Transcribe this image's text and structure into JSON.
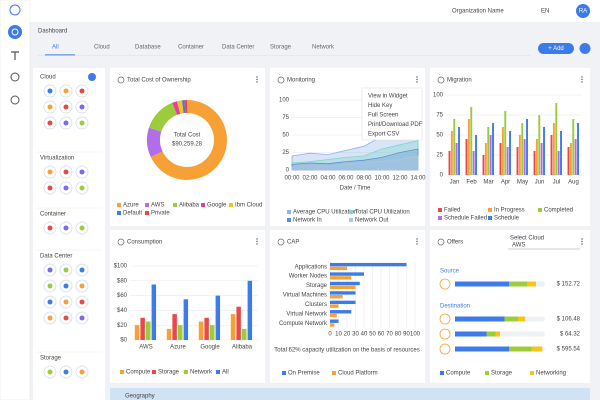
{
  "header": {
    "org": "Organization Name",
    "lang": "EN",
    "avatar": "RA"
  },
  "page_title": "Dashboard",
  "tabs": [
    "All",
    "Cloud",
    "Database",
    "Container",
    "Data Center",
    "Storage",
    "Network"
  ],
  "add_button": "+ Add",
  "sidebar_sections": [
    "Cloud",
    "Virtualization",
    "Container",
    "Data Center",
    "Storage"
  ],
  "geography": "Geography",
  "chart_data": [
    {
      "type": "donut",
      "title": "Total Cost of Ownership",
      "center_label": "Total Cost",
      "center_value": "$90,259.28",
      "categories": [
        "Azure",
        "AWS",
        "Alibaba",
        "Google",
        "Ibm Cloud",
        "Default",
        "Private"
      ],
      "values": [
        68,
        12,
        14,
        2,
        2,
        1,
        1
      ],
      "colors": [
        "#f7a035",
        "#b16ee8",
        "#9ccc3c",
        "#e040a0",
        "#f5c518",
        "#3d7be8",
        "#e84848"
      ]
    },
    {
      "type": "area",
      "title": "Monitoring",
      "x_label": "Date / Time",
      "menu": [
        "View in Widget",
        "Hide Key",
        "Full Screen",
        "Print/Download PDF",
        "Export CSV"
      ],
      "categories": [
        "00:00",
        "02:00",
        "04:00",
        "06:00",
        "08:00",
        "10:00",
        "12:00",
        "14:00"
      ],
      "ylim": [
        0,
        100
      ],
      "yticks": [
        0,
        25,
        50,
        75,
        100
      ],
      "series": [
        {
          "name": "Average CPU Utilization",
          "color": "#8fb3e8",
          "values": [
            20,
            24,
            22,
            28,
            34,
            48,
            72,
            58
          ]
        },
        {
          "name": "Total CPU Utilization",
          "color": "#7fd6c9",
          "values": [
            10,
            12,
            15,
            18,
            20,
            30,
            36,
            42
          ]
        },
        {
          "name": "Network In",
          "color": "#5a8fd8",
          "values": [
            8,
            10,
            9,
            12,
            14,
            18,
            25,
            30
          ]
        },
        {
          "name": "Network Out",
          "color": "#b0c4de",
          "values": [
            4,
            6,
            5,
            8,
            10,
            12,
            15,
            20
          ]
        }
      ]
    },
    {
      "type": "bar",
      "title": "Migration",
      "categories": [
        "Jan",
        "Feb",
        "Mar",
        "Apr",
        "May",
        "Jun",
        "Jul",
        "Aug"
      ],
      "ylim": [
        0,
        100
      ],
      "yticks": [
        0,
        25,
        50,
        75,
        100
      ],
      "series": [
        {
          "name": "Failed",
          "color": "#e84848",
          "values": [
            30,
            45,
            25,
            40,
            35,
            30,
            50,
            35
          ]
        },
        {
          "name": "In Progress",
          "color": "#f7a035",
          "values": [
            55,
            70,
            40,
            60,
            50,
            45,
            65,
            40
          ]
        },
        {
          "name": "Completed",
          "color": "#9ccc3c",
          "values": [
            70,
            85,
            60,
            80,
            65,
            75,
            90,
            70
          ]
        },
        {
          "name": "Schedule Failed",
          "color": "#b16ee8",
          "values": [
            40,
            30,
            50,
            35,
            45,
            40,
            30,
            45
          ]
        },
        {
          "name": "Schedule",
          "color": "#3d7be8",
          "values": [
            60,
            50,
            65,
            55,
            70,
            60,
            55,
            65
          ]
        }
      ]
    },
    {
      "type": "bar",
      "title": "Consumption",
      "categories": [
        "AWS",
        "Azure",
        "Google",
        "Alibaba"
      ],
      "ylim": [
        0,
        100
      ],
      "yticks": [
        {
          "value": 0,
          "label": "$0"
        },
        {
          "value": 20,
          "label": "$20"
        },
        {
          "value": 40,
          "label": "$40"
        },
        {
          "value": 60,
          "label": "$60"
        },
        {
          "value": 80,
          "label": "$80"
        },
        {
          "value": 100,
          "label": "$100"
        }
      ],
      "series": [
        {
          "name": "Compute",
          "color": "#f7a035",
          "values": [
            20,
            15,
            25,
            35
          ]
        },
        {
          "name": "Storage",
          "color": "#e84848",
          "values": [
            30,
            35,
            30,
            45
          ]
        },
        {
          "name": "Network",
          "color": "#9ccc3c",
          "values": [
            25,
            20,
            20,
            15
          ]
        },
        {
          "name": "All",
          "color": "#3d7be8",
          "values": [
            75,
            55,
            60,
            80
          ]
        }
      ]
    },
    {
      "type": "hbar",
      "title": "CAP",
      "note": "Total 62% capacity utilization on the basis of resources",
      "categories": [
        "Applications",
        "Worker Nodes",
        "Storage",
        "Virtual Machines",
        "Clusters",
        "Virtual Network",
        "Compute Network"
      ],
      "xlim": [
        0,
        100
      ],
      "xticks": [
        0,
        10,
        20,
        30,
        40,
        50,
        60,
        70,
        80,
        90,
        100
      ],
      "series": [
        {
          "name": "On Premise",
          "color": "#3d7be8",
          "values": [
            90,
            40,
            35,
            30,
            30,
            25,
            10
          ]
        },
        {
          "name": "Cloud Platform",
          "color": "#f7a035",
          "values": [
            20,
            25,
            30,
            15,
            10,
            8,
            5
          ]
        }
      ]
    },
    {
      "type": "stacked_hbar",
      "title": "Offers",
      "select_label": "Select Cloud",
      "select_value": "AWS",
      "groups": [
        "Source",
        "Destination"
      ],
      "xlim": [
        0,
        100
      ],
      "prices": [
        "$ 152.72",
        "$ 106.48",
        "$ 64.32",
        "$ 595.54"
      ],
      "series": [
        {
          "name": "Compute",
          "color": "#3d7be8",
          "values": [
            60,
            55,
            35,
            60
          ]
        },
        {
          "name": "Storage",
          "color": "#9ccc3c",
          "values": [
            20,
            15,
            10,
            25
          ]
        },
        {
          "name": "Networking",
          "color": "#f5c518",
          "values": [
            10,
            8,
            5,
            12
          ]
        }
      ]
    }
  ]
}
